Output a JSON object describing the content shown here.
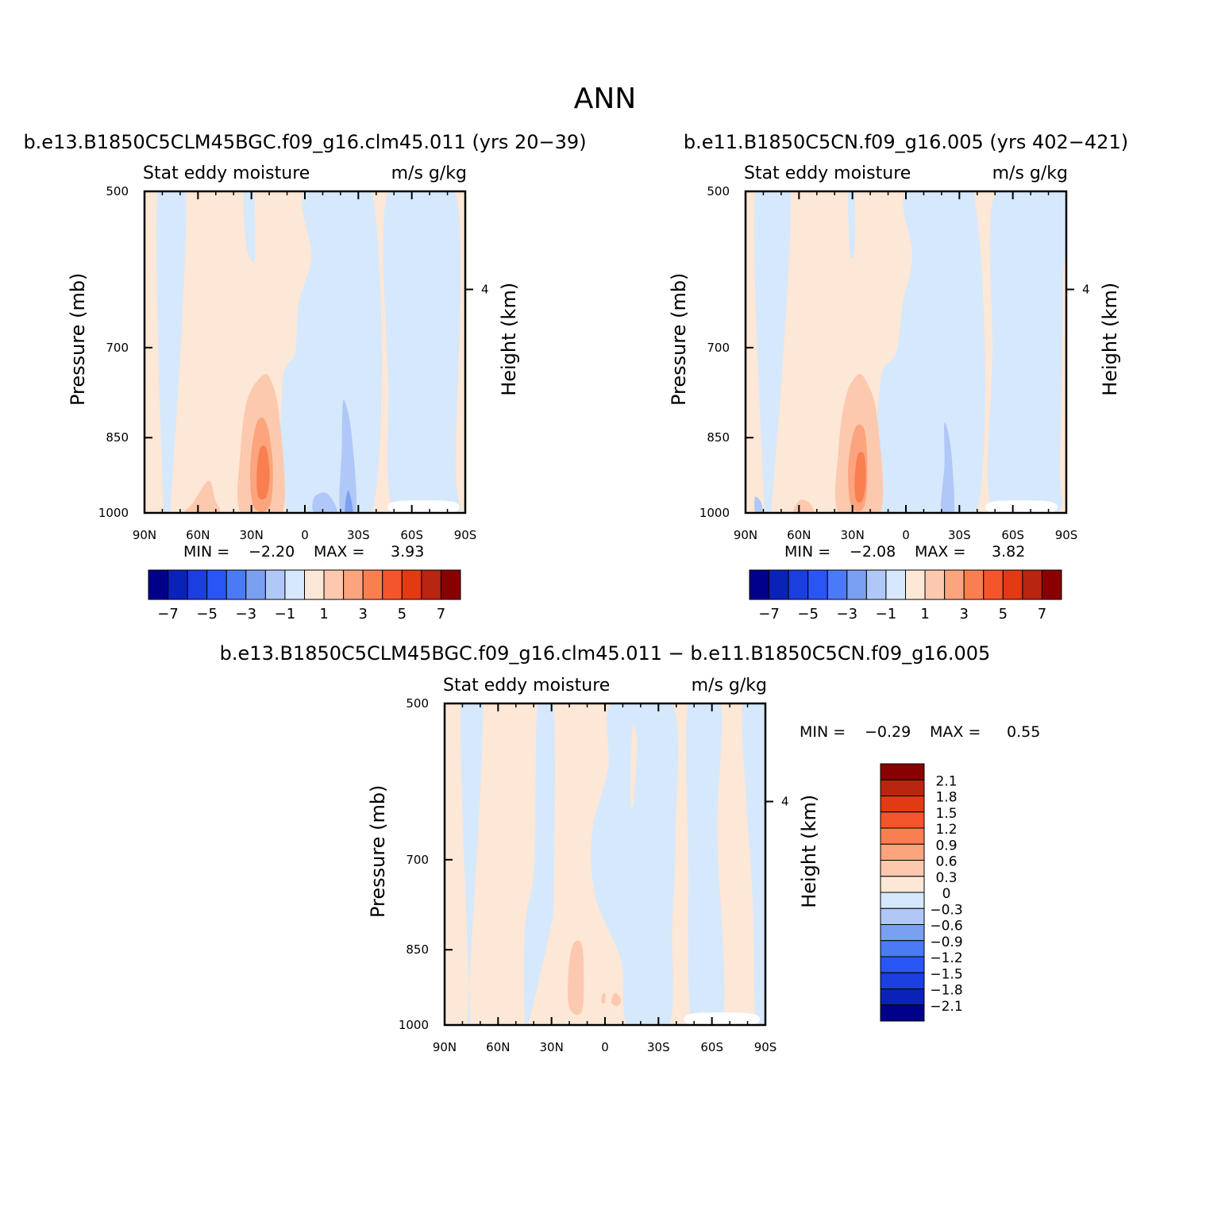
{
  "page_title": "ANN",
  "chart_data": [
    {
      "type": "heatmap",
      "case": "b.e13.B1850C5CLM45BGC.f09_g16.clm45.011 (yrs 20−39)",
      "left_label": "Stat eddy moisture",
      "right_label": "m/s g/kg",
      "ylabel": "Pressure (mb)",
      "ylabel_right": "Height (km)",
      "x_ticks": [
        "90N",
        "60N",
        "30N",
        "0",
        "30S",
        "60S",
        "90S"
      ],
      "y_ticks": [
        "500",
        "700",
        "850",
        "1000"
      ],
      "y_ticks_right": [
        "4"
      ],
      "ylim": [
        1000,
        500
      ],
      "xlim": [
        "90N",
        "90S"
      ],
      "min_label": "MIN =",
      "min_value": "−2.20",
      "max_label": "MAX =",
      "max_value": "3.93",
      "colorbar": {
        "orientation": "horizontal",
        "labels": [
          "−7",
          "−5",
          "−3",
          "−1",
          "1",
          "3",
          "5",
          "7"
        ],
        "colors": [
          "#00008a",
          "#0a22b8",
          "#1a3ee0",
          "#2a55f5",
          "#4a7af5",
          "#7aa0f2",
          "#b0c8f8",
          "#d6e8fb",
          "#fde7d6",
          "#fcc9ae",
          "#fba47e",
          "#f97f50",
          "#f4552a",
          "#e23a12",
          "#b82510",
          "#880000"
        ]
      }
    },
    {
      "type": "heatmap",
      "case": "b.e11.B1850C5CN.f09_g16.005 (yrs 402−421)",
      "left_label": "Stat eddy moisture",
      "right_label": "m/s g/kg",
      "ylabel": "Pressure (mb)",
      "ylabel_right": "Height (km)",
      "x_ticks": [
        "90N",
        "60N",
        "30N",
        "0",
        "30S",
        "60S",
        "90S"
      ],
      "y_ticks": [
        "500",
        "700",
        "850",
        "1000"
      ],
      "y_ticks_right": [
        "4"
      ],
      "ylim": [
        1000,
        500
      ],
      "xlim": [
        "90N",
        "90S"
      ],
      "min_label": "MIN =",
      "min_value": "−2.08",
      "max_label": "MAX =",
      "max_value": "3.82",
      "colorbar": {
        "orientation": "horizontal",
        "labels": [
          "−7",
          "−5",
          "−3",
          "−1",
          "1",
          "3",
          "5",
          "7"
        ],
        "colors": [
          "#00008a",
          "#0a22b8",
          "#1a3ee0",
          "#2a55f5",
          "#4a7af5",
          "#7aa0f2",
          "#b0c8f8",
          "#d6e8fb",
          "#fde7d6",
          "#fcc9ae",
          "#fba47e",
          "#f97f50",
          "#f4552a",
          "#e23a12",
          "#b82510",
          "#880000"
        ]
      }
    },
    {
      "type": "heatmap",
      "case": "b.e13.B1850C5CLM45BGC.f09_g16.clm45.011 − b.e11.B1850C5CN.f09_g16.005",
      "left_label": "Stat eddy moisture",
      "right_label": "m/s g/kg",
      "ylabel": "Pressure (mb)",
      "ylabel_right": "Height (km)",
      "x_ticks": [
        "90N",
        "60N",
        "30N",
        "0",
        "30S",
        "60S",
        "90S"
      ],
      "y_ticks": [
        "500",
        "700",
        "850",
        "1000"
      ],
      "y_ticks_right": [
        "4"
      ],
      "ylim": [
        1000,
        500
      ],
      "xlim": [
        "90N",
        "90S"
      ],
      "min_label": "MIN =",
      "min_value": "−0.29",
      "max_label": "MAX =",
      "max_value": "0.55",
      "colorbar": {
        "orientation": "vertical",
        "labels": [
          "2.1",
          "1.8",
          "1.5",
          "1.2",
          "0.9",
          "0.6",
          "0.3",
          "0",
          "−0.3",
          "−0.6",
          "−0.9",
          "−1.2",
          "−1.5",
          "−1.8",
          "−2.1"
        ],
        "colors": [
          "#880000",
          "#b82510",
          "#e23a12",
          "#f4552a",
          "#f97f50",
          "#fba47e",
          "#fcc9ae",
          "#fde7d6",
          "#d6e8fb",
          "#b0c8f8",
          "#7aa0f2",
          "#4a7af5",
          "#2a55f5",
          "#1a3ee0",
          "#0a22b8",
          "#00008a"
        ]
      }
    }
  ]
}
